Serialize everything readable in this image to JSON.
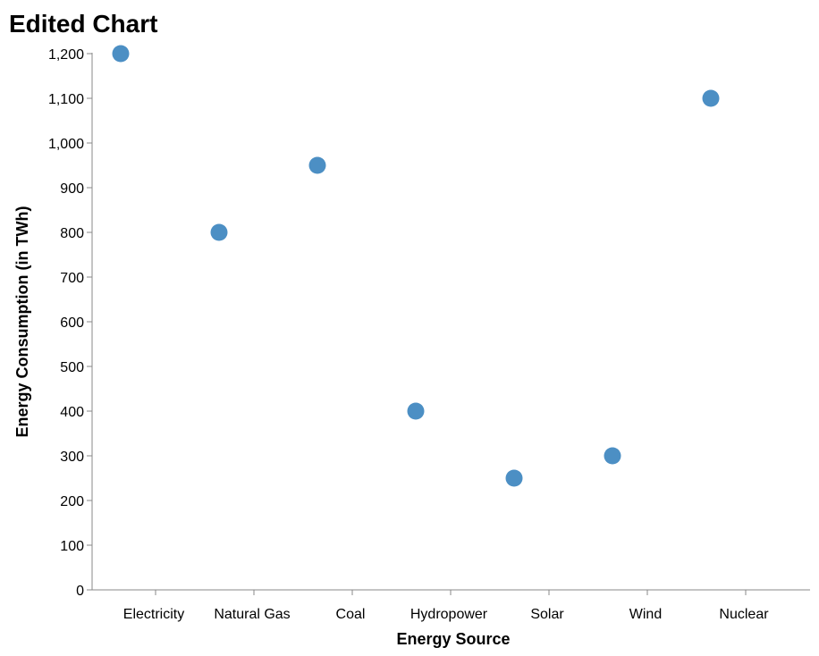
{
  "chart_data": {
    "type": "scatter",
    "title": "Edited Chart",
    "xlabel": "Energy Source",
    "ylabel": "Energy Consumption (in TWh)",
    "x_categories": [
      "Electricity",
      "Natural Gas",
      "Coal",
      "Hydropower",
      "Solar",
      "Wind",
      "Nuclear"
    ],
    "y_ticks": [
      "0",
      "100",
      "200",
      "300",
      "400",
      "500",
      "600",
      "700",
      "800",
      "900",
      "1,000",
      "1,100",
      "1,200"
    ],
    "ylim": [
      0,
      1200
    ],
    "grid": false,
    "points": [
      {
        "x": "Electricity",
        "y": 1200
      },
      {
        "x": "Natural Gas",
        "y": 800
      },
      {
        "x": "Coal",
        "y": 950
      },
      {
        "x": "Hydropower",
        "y": 400
      },
      {
        "x": "Solar",
        "y": 250
      },
      {
        "x": "Wind",
        "y": 300
      },
      {
        "x": "Nuclear",
        "y": 1100
      }
    ],
    "point_color": "#4c8fc4"
  }
}
